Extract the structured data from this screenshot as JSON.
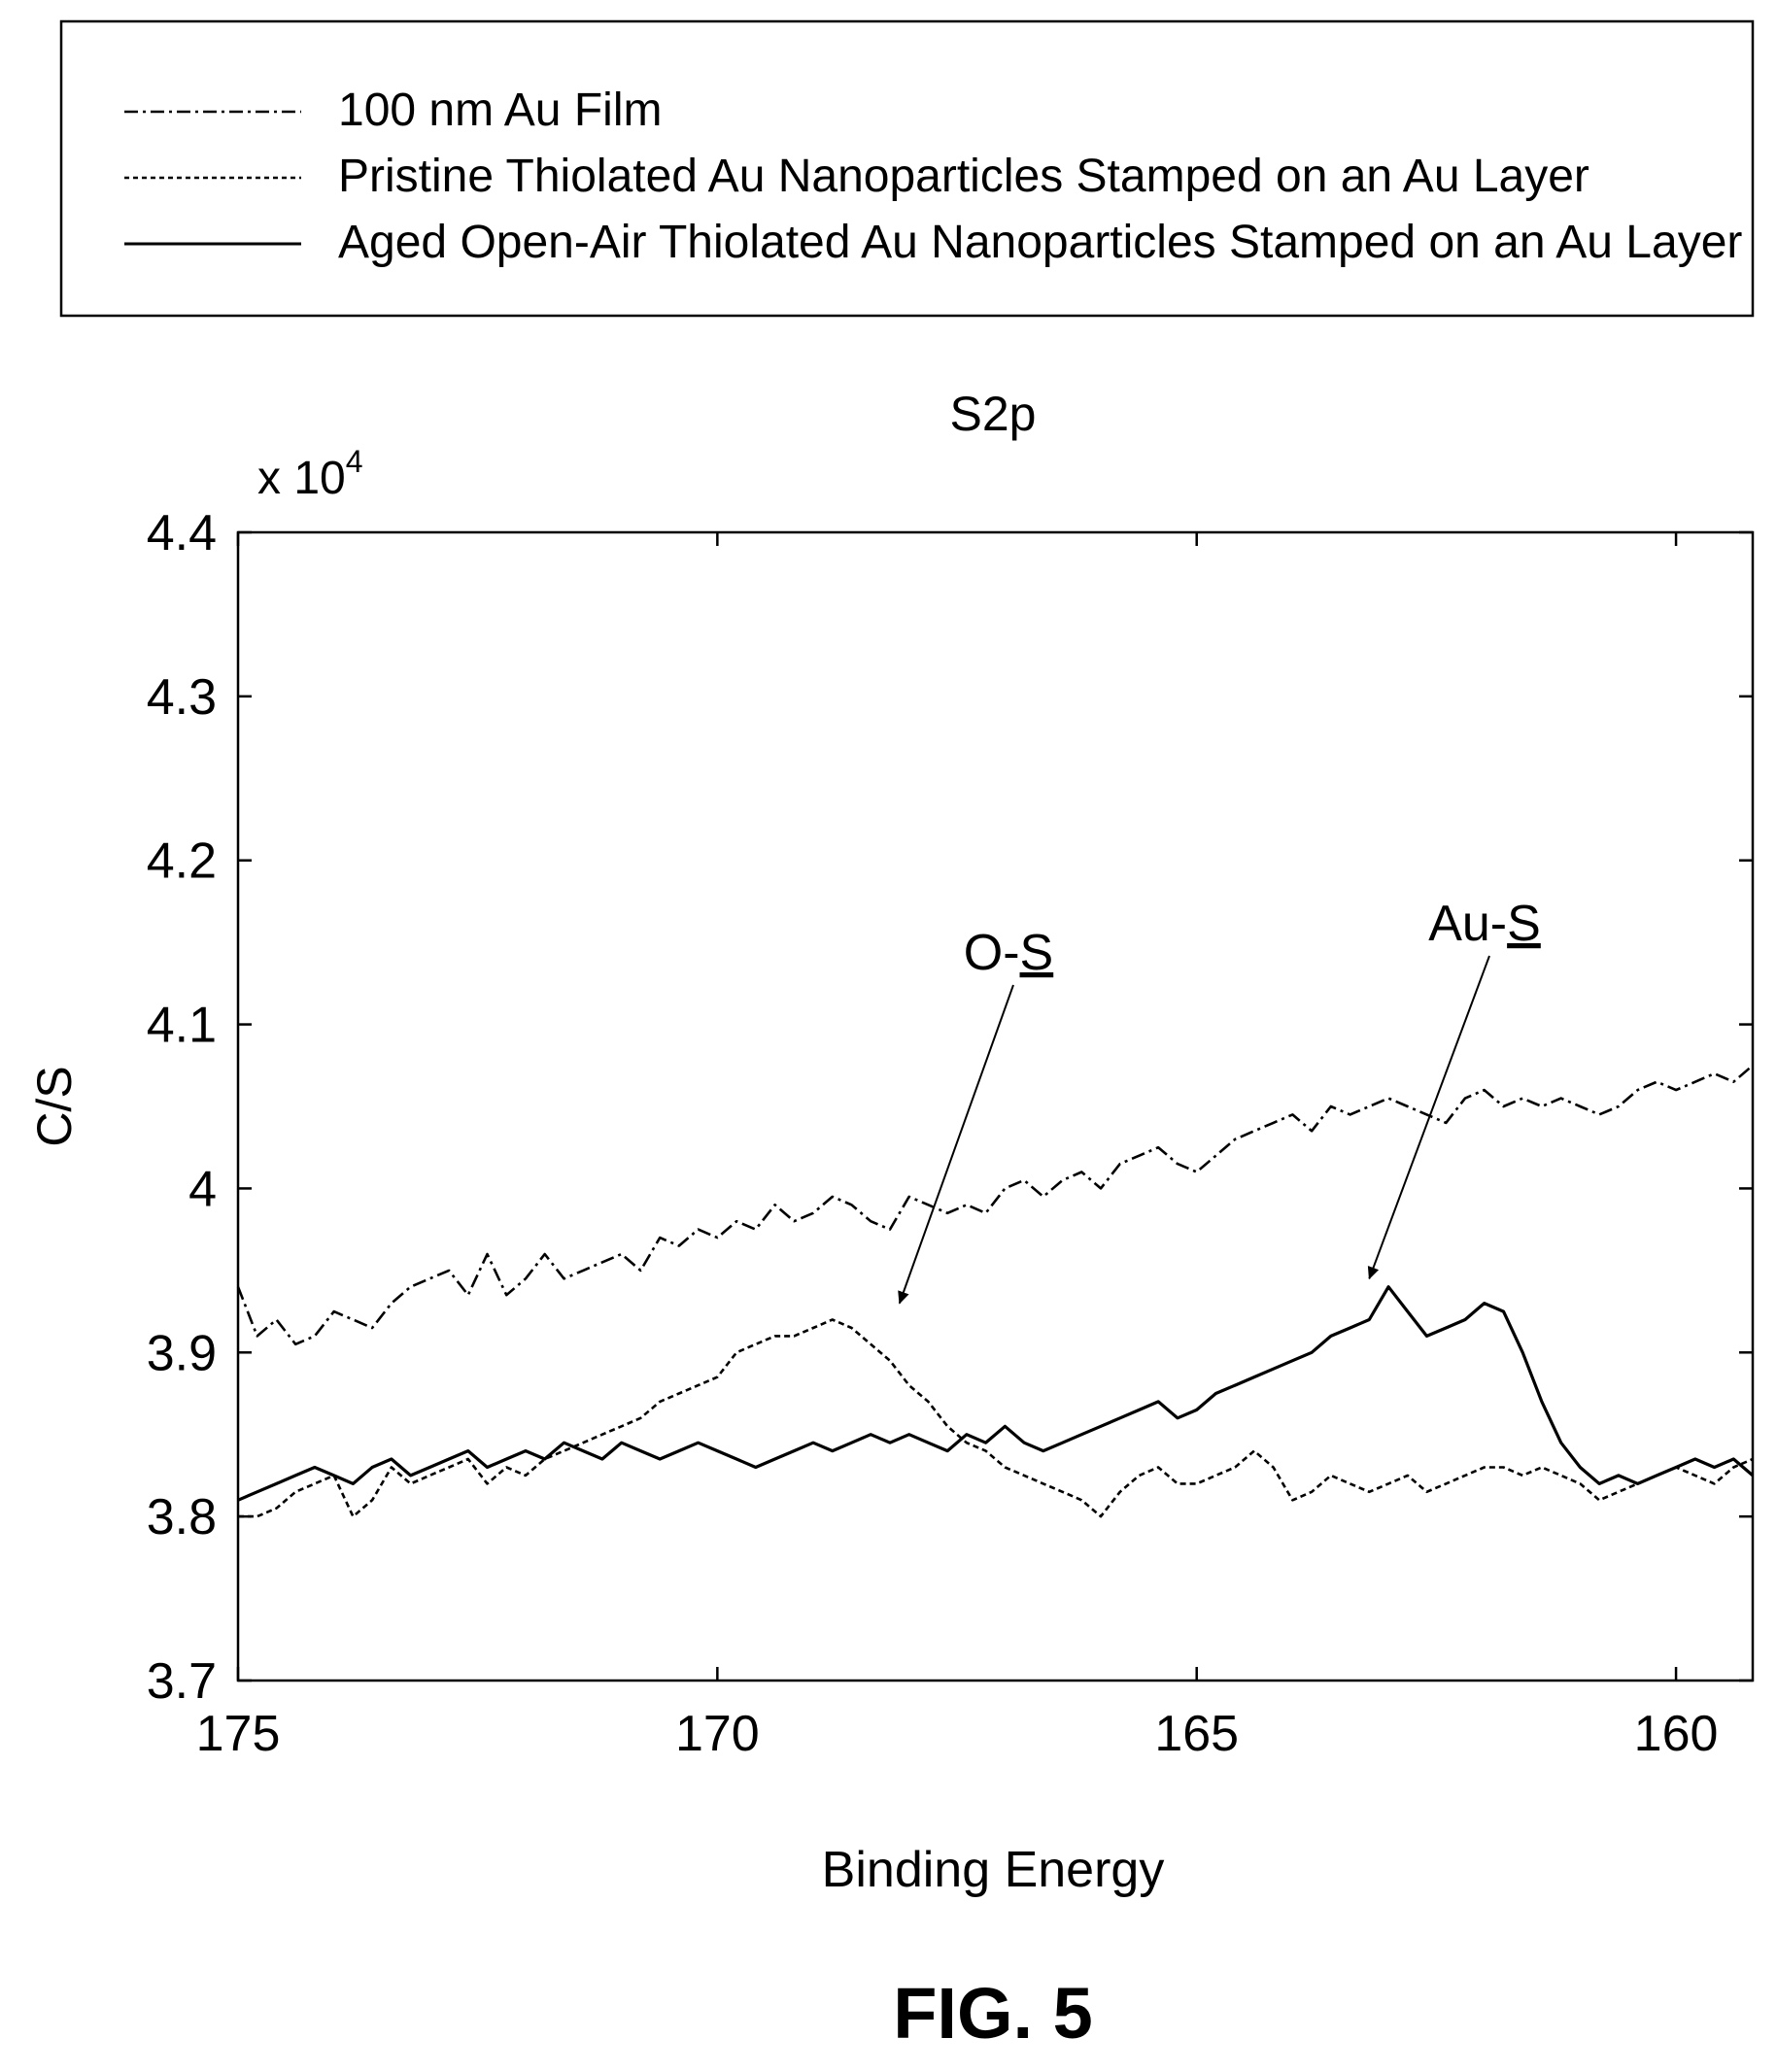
{
  "figure_label": "FIG. 5",
  "chart_data": {
    "type": "line",
    "title": "S2p",
    "xlabel": "Binding Energy",
    "ylabel": "C/S",
    "y_multiplier": "x 10",
    "y_multiplier_exponent": "4",
    "xlim": [
      175,
      159.2
    ],
    "x_reversed": true,
    "ylim": [
      3.7,
      4.4
    ],
    "x_ticks": [
      175,
      170,
      165,
      160
    ],
    "x_tick_labels": [
      "175",
      "170",
      "165",
      "160"
    ],
    "y_ticks": [
      3.7,
      3.8,
      3.9,
      4.0,
      4.1,
      4.2,
      4.3,
      4.4
    ],
    "y_tick_labels": [
      "3.7",
      "3.8",
      "3.9",
      "4",
      "4.1",
      "4.2",
      "4.3",
      "4.4"
    ],
    "grid": false,
    "legend_placement": "top",
    "series": [
      {
        "name": "100 nm Au Film",
        "line_style": "dash-dot",
        "color": "#000000",
        "x": [
          175.0,
          174.8,
          174.6,
          174.4,
          174.2,
          174.0,
          173.8,
          173.6,
          173.4,
          173.2,
          173.0,
          172.8,
          172.6,
          172.4,
          172.2,
          172.0,
          171.8,
          171.6,
          171.4,
          171.2,
          171.0,
          170.8,
          170.6,
          170.4,
          170.2,
          170.0,
          169.8,
          169.6,
          169.4,
          169.2,
          169.0,
          168.8,
          168.6,
          168.4,
          168.2,
          168.0,
          167.8,
          167.6,
          167.4,
          167.2,
          167.0,
          166.8,
          166.6,
          166.4,
          166.2,
          166.0,
          165.8,
          165.6,
          165.4,
          165.2,
          165.0,
          164.8,
          164.6,
          164.4,
          164.2,
          164.0,
          163.8,
          163.6,
          163.4,
          163.2,
          163.0,
          162.8,
          162.6,
          162.4,
          162.2,
          162.0,
          161.8,
          161.6,
          161.4,
          161.2,
          161.0,
          160.8,
          160.6,
          160.4,
          160.2,
          160.0,
          159.8,
          159.6,
          159.4,
          159.2
        ],
        "y": [
          3.94,
          3.91,
          3.92,
          3.905,
          3.91,
          3.925,
          3.92,
          3.915,
          3.93,
          3.94,
          3.945,
          3.95,
          3.935,
          3.96,
          3.935,
          3.945,
          3.96,
          3.945,
          3.95,
          3.955,
          3.96,
          3.95,
          3.97,
          3.965,
          3.975,
          3.97,
          3.98,
          3.975,
          3.99,
          3.98,
          3.985,
          3.995,
          3.99,
          3.98,
          3.975,
          3.995,
          3.99,
          3.985,
          3.99,
          3.985,
          4.0,
          4.005,
          3.995,
          4.005,
          4.01,
          4.0,
          4.015,
          4.02,
          4.025,
          4.015,
          4.01,
          4.02,
          4.03,
          4.035,
          4.04,
          4.045,
          4.035,
          4.05,
          4.045,
          4.05,
          4.055,
          4.05,
          4.045,
          4.04,
          4.055,
          4.06,
          4.05,
          4.055,
          4.05,
          4.055,
          4.05,
          4.045,
          4.05,
          4.06,
          4.065,
          4.06,
          4.065,
          4.07,
          4.065,
          4.075
        ]
      },
      {
        "name": "Pristine Thiolated Au Nanoparticles Stamped on an Au Layer",
        "line_style": "dashed",
        "color": "#000000",
        "x": [
          175.0,
          174.8,
          174.6,
          174.4,
          174.2,
          174.0,
          173.8,
          173.6,
          173.4,
          173.2,
          173.0,
          172.8,
          172.6,
          172.4,
          172.2,
          172.0,
          171.8,
          171.6,
          171.4,
          171.2,
          171.0,
          170.8,
          170.6,
          170.4,
          170.2,
          170.0,
          169.8,
          169.6,
          169.4,
          169.2,
          169.0,
          168.8,
          168.6,
          168.4,
          168.2,
          168.0,
          167.8,
          167.6,
          167.4,
          167.2,
          167.0,
          166.8,
          166.6,
          166.4,
          166.2,
          166.0,
          165.8,
          165.6,
          165.4,
          165.2,
          165.0,
          164.8,
          164.6,
          164.4,
          164.2,
          164.0,
          163.8,
          163.6,
          163.4,
          163.2,
          163.0,
          162.8,
          162.6,
          162.4,
          162.2,
          162.0,
          161.8,
          161.6,
          161.4,
          161.2,
          161.0,
          160.8,
          160.6,
          160.4,
          160.2,
          160.0,
          159.8,
          159.6,
          159.4,
          159.2
        ],
        "y": [
          3.8,
          3.8,
          3.805,
          3.815,
          3.82,
          3.825,
          3.8,
          3.81,
          3.83,
          3.82,
          3.825,
          3.83,
          3.835,
          3.82,
          3.83,
          3.825,
          3.835,
          3.84,
          3.845,
          3.85,
          3.855,
          3.86,
          3.87,
          3.875,
          3.88,
          3.885,
          3.9,
          3.905,
          3.91,
          3.91,
          3.915,
          3.92,
          3.915,
          3.905,
          3.895,
          3.88,
          3.87,
          3.855,
          3.845,
          3.84,
          3.83,
          3.825,
          3.82,
          3.815,
          3.81,
          3.8,
          3.815,
          3.825,
          3.83,
          3.82,
          3.82,
          3.825,
          3.83,
          3.84,
          3.83,
          3.81,
          3.815,
          3.825,
          3.82,
          3.815,
          3.82,
          3.825,
          3.815,
          3.82,
          3.825,
          3.83,
          3.83,
          3.825,
          3.83,
          3.825,
          3.82,
          3.81,
          3.815,
          3.82,
          3.825,
          3.83,
          3.825,
          3.82,
          3.83,
          3.835
        ]
      },
      {
        "name": "Aged Open-Air Thiolated Au Nanoparticles Stamped on an Au Layer",
        "line_style": "solid",
        "color": "#000000",
        "x": [
          175.0,
          174.8,
          174.6,
          174.4,
          174.2,
          174.0,
          173.8,
          173.6,
          173.4,
          173.2,
          173.0,
          172.8,
          172.6,
          172.4,
          172.2,
          172.0,
          171.8,
          171.6,
          171.4,
          171.2,
          171.0,
          170.8,
          170.6,
          170.4,
          170.2,
          170.0,
          169.8,
          169.6,
          169.4,
          169.2,
          169.0,
          168.8,
          168.6,
          168.4,
          168.2,
          168.0,
          167.8,
          167.6,
          167.4,
          167.2,
          167.0,
          166.8,
          166.6,
          166.4,
          166.2,
          166.0,
          165.8,
          165.6,
          165.4,
          165.2,
          165.0,
          164.8,
          164.6,
          164.4,
          164.2,
          164.0,
          163.8,
          163.6,
          163.4,
          163.2,
          163.0,
          162.8,
          162.6,
          162.4,
          162.2,
          162.0,
          161.8,
          161.6,
          161.4,
          161.2,
          161.0,
          160.8,
          160.6,
          160.4,
          160.2,
          160.0,
          159.8,
          159.6,
          159.4,
          159.2
        ],
        "y": [
          3.81,
          3.815,
          3.82,
          3.825,
          3.83,
          3.825,
          3.82,
          3.83,
          3.835,
          3.825,
          3.83,
          3.835,
          3.84,
          3.83,
          3.835,
          3.84,
          3.835,
          3.845,
          3.84,
          3.835,
          3.845,
          3.84,
          3.835,
          3.84,
          3.845,
          3.84,
          3.835,
          3.83,
          3.835,
          3.84,
          3.845,
          3.84,
          3.845,
          3.85,
          3.845,
          3.85,
          3.845,
          3.84,
          3.85,
          3.845,
          3.855,
          3.845,
          3.84,
          3.845,
          3.85,
          3.855,
          3.86,
          3.865,
          3.87,
          3.86,
          3.865,
          3.875,
          3.88,
          3.885,
          3.89,
          3.895,
          3.9,
          3.91,
          3.915,
          3.92,
          3.94,
          3.925,
          3.91,
          3.915,
          3.92,
          3.93,
          3.925,
          3.9,
          3.87,
          3.845,
          3.83,
          3.82,
          3.825,
          3.82,
          3.825,
          3.83,
          3.835,
          3.83,
          3.835,
          3.825
        ]
      }
    ],
    "annotations": [
      {
        "prefix": "O-",
        "underlined": "S",
        "arrow_to_x": 168.1,
        "arrow_to_y": 3.93
      },
      {
        "prefix": "Au-",
        "underlined": "S",
        "arrow_to_x": 163.2,
        "arrow_to_y": 3.945
      }
    ]
  }
}
